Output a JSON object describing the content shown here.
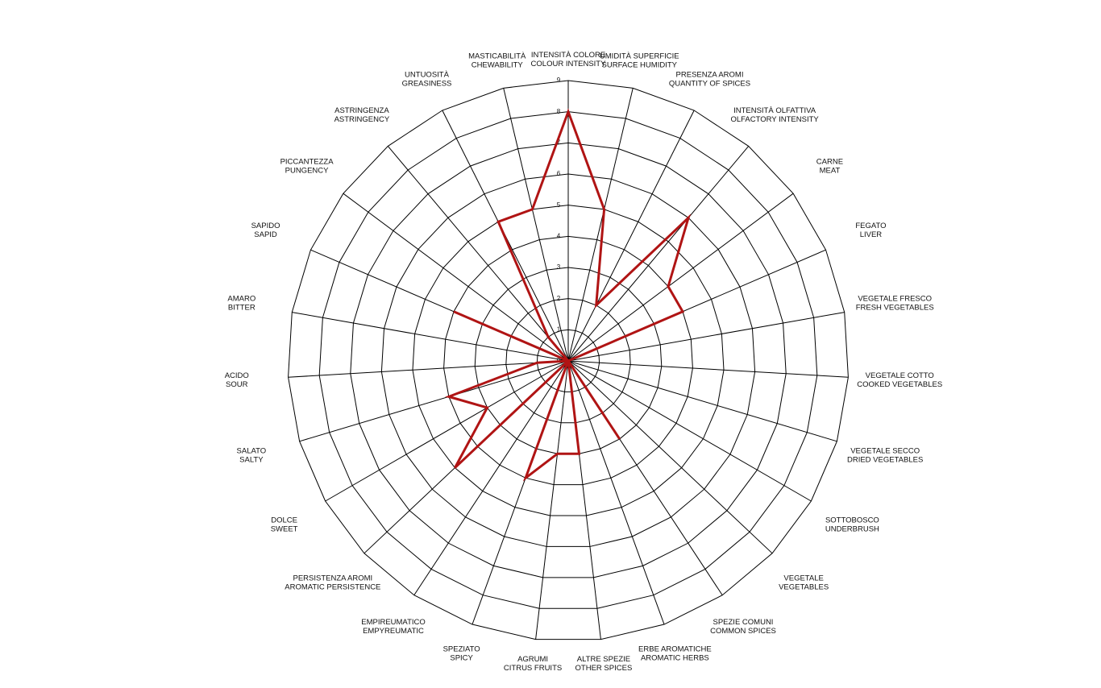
{
  "chart_data": {
    "type": "radar",
    "categories": [
      [
        "INTENSITÀ COLORE",
        "COLOUR INTENSITY"
      ],
      [
        "UMIDITÀ SUPERFICIE",
        "SURFACE HUMIDITY"
      ],
      [
        "PRESENZA AROMI",
        "QUANTITY OF SPICES"
      ],
      [
        "INTENSITÀ OLFATTIVA",
        "OLFACTORY INTENSITY"
      ],
      [
        "CARNE",
        "MEAT"
      ],
      [
        "FEGATO",
        "LIVER"
      ],
      [
        "VEGETALE FRESCO",
        "FRESH VEGETABLES"
      ],
      [
        "VEGETALE COTTO",
        "COOKED VEGETABLES"
      ],
      [
        "VEGETALE SECCO",
        "DRIED VEGETABLES"
      ],
      [
        "SOTTOBOSCO",
        "UNDERBRUSH"
      ],
      [
        "VEGETALE",
        "VEGETABLES"
      ],
      [
        "SPEZIE COMUNI",
        "COMMON SPICES"
      ],
      [
        "ERBE AROMATICHE",
        "AROMATIC HERBS"
      ],
      [
        "ALTRE SPEZIE",
        "OTHER SPICES"
      ],
      [
        "AGRUMI",
        "CITRUS FRUITS"
      ],
      [
        "SPEZIATO",
        "SPICY"
      ],
      [
        "EMPIREUMATICO",
        "EMPYREUMATIC"
      ],
      [
        "PERSISTENZA AROMI",
        "AROMATIC PERSISTENCE"
      ],
      [
        "DOLCE",
        "SWEET"
      ],
      [
        "SALATO",
        "SALTY"
      ],
      [
        "ACIDO",
        "SOUR"
      ],
      [
        "AMARO",
        "BITTER"
      ],
      [
        "SAPIDO",
        "SAPID"
      ],
      [
        "PICCANTEZZA",
        "PUNGENCY"
      ],
      [
        "ASTRINGENZA",
        "ASTRINGENCY"
      ],
      [
        "UNTUOSITÀ",
        "GREASINESS"
      ],
      [
        "MASTICABILITÀ",
        "CHEWABILITY"
      ]
    ],
    "values": [
      8,
      5,
      2,
      6,
      4,
      4,
      0,
      0,
      0,
      0,
      0,
      3,
      0,
      3,
      3,
      4,
      0,
      5,
      3,
      4,
      1,
      0,
      4,
      0,
      1,
      5,
      5
    ],
    "color": "#b01414",
    "rlim": [
      0,
      9
    ],
    "rticks": [
      0,
      1,
      2,
      3,
      4,
      5,
      6,
      7,
      8,
      9
    ]
  }
}
